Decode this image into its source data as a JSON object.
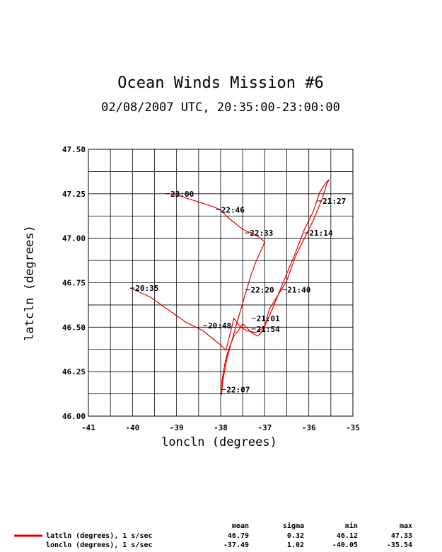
{
  "chart_data": {
    "type": "line",
    "title": "Ocean Winds Mission #6",
    "subtitle": "02/08/2007  UTC, 20:35:00-23:00:00",
    "xlabel": "loncln (degrees)",
    "ylabel": "latcln (degrees)",
    "xlim": [
      -41,
      -35
    ],
    "ylim": [
      46.0,
      47.5
    ],
    "x_ticks": [
      -41,
      -40,
      -39,
      -38,
      -37,
      -36,
      -35
    ],
    "y_ticks": [
      "46.00",
      "46.25",
      "46.50",
      "46.75",
      "47.00",
      "47.25",
      "47.50"
    ],
    "grid": true,
    "line_color": "#e00000",
    "series": [
      {
        "x": [
          -40.05,
          -39.6,
          -39.2,
          -38.8,
          -38.4,
          -38.2,
          -38.0,
          -37.88,
          -37.8,
          -37.7,
          -37.55,
          -37.4,
          -37.2,
          -37.0,
          -36.9,
          -36.7,
          -36.5,
          -36.3,
          -36.1,
          -35.9,
          -35.7,
          -35.6,
          -35.54,
          -35.58,
          -35.65,
          -35.75,
          -35.9,
          -36.1,
          -36.3,
          -36.5,
          -36.7,
          -36.9,
          -37.05,
          -37.15,
          -37.3,
          -37.42,
          -37.5,
          -37.6,
          -37.7,
          -37.78,
          -37.85,
          -37.9,
          -37.97,
          -37.98,
          -37.95,
          -37.85,
          -37.75,
          -37.6,
          -37.45,
          -37.3,
          -37.18,
          -37.05,
          -37.0,
          -37.05,
          -37.15,
          -37.3,
          -37.42,
          -37.55,
          -37.7,
          -37.85,
          -38.0,
          -38.2,
          -38.45,
          -38.7,
          -38.95,
          -39.15,
          -39.25
        ],
        "y": [
          46.72,
          46.67,
          46.6,
          46.53,
          46.48,
          46.44,
          46.4,
          46.37,
          46.45,
          46.55,
          46.5,
          46.48,
          46.47,
          46.5,
          46.6,
          46.68,
          46.76,
          46.9,
          47.0,
          47.1,
          47.22,
          47.3,
          47.33,
          47.32,
          47.3,
          47.26,
          47.15,
          47.05,
          46.92,
          46.8,
          46.68,
          46.56,
          46.48,
          46.45,
          46.47,
          46.5,
          46.52,
          46.48,
          46.45,
          46.4,
          46.35,
          46.3,
          46.2,
          46.12,
          46.2,
          46.33,
          46.42,
          46.55,
          46.68,
          46.8,
          46.88,
          46.95,
          46.98,
          46.99,
          47.01,
          47.03,
          47.04,
          47.06,
          47.09,
          47.12,
          47.16,
          47.18,
          47.2,
          47.22,
          47.24,
          47.25,
          47.25
        ]
      }
    ],
    "time_labels": [
      {
        "text": "20:35",
        "x": -40.05,
        "y": 46.72
      },
      {
        "text": "20:48",
        "x": -38.4,
        "y": 46.51
      },
      {
        "text": "21:01",
        "x": -37.3,
        "y": 46.55
      },
      {
        "text": "21:14",
        "x": -36.1,
        "y": 47.03
      },
      {
        "text": "21:27",
        "x": -35.8,
        "y": 47.21
      },
      {
        "text": "21:40",
        "x": -36.6,
        "y": 46.71
      },
      {
        "text": "21:54",
        "x": -37.3,
        "y": 46.49
      },
      {
        "text": "22:07",
        "x": -37.98,
        "y": 46.15
      },
      {
        "text": "22:20",
        "x": -37.43,
        "y": 46.71
      },
      {
        "text": "22:33",
        "x": -37.45,
        "y": 47.03
      },
      {
        "text": "22:46",
        "x": -38.1,
        "y": 47.16
      },
      {
        "text": "23:00",
        "x": -39.25,
        "y": 47.25
      }
    ],
    "legend": {
      "position": "bottom",
      "entries": [
        "latcln (degrees), 1 s/sec",
        "loncln (degrees), 1 s/sec"
      ],
      "stat_headers": [
        "mean",
        "sigma",
        "min",
        "max"
      ],
      "stats": [
        [
          "46.79",
          "0.32",
          "46.12",
          "47.33"
        ],
        [
          "-37.49",
          "1.02",
          "-40.05",
          "-35.54"
        ]
      ]
    }
  }
}
